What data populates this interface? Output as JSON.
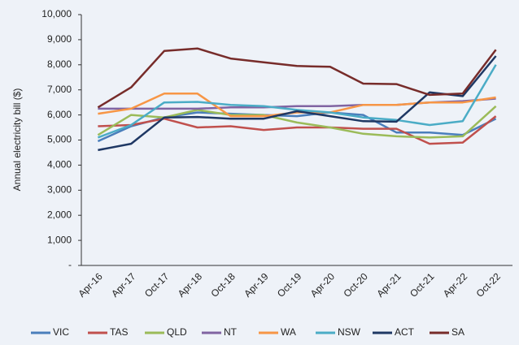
{
  "chart_data": {
    "type": "line",
    "ylabel": "Annual electricity bill ($)",
    "categories": [
      "Apr-16",
      "Apr-17",
      "Oct-17",
      "Apr-18",
      "Oct-18",
      "Apr-19",
      "Oct-19",
      "Apr-20",
      "Oct-20",
      "Apr-21",
      "Oct-21",
      "Apr-22",
      "Oct-22"
    ],
    "series": [
      {
        "name": "VIC",
        "color": "#4a7ebb",
        "values": [
          4950,
          5550,
          5900,
          6100,
          6050,
          6000,
          5950,
          6100,
          6000,
          5300,
          5300,
          5200,
          5850
        ]
      },
      {
        "name": "TAS",
        "color": "#c0504d",
        "values": [
          5550,
          5600,
          5850,
          5500,
          5550,
          5400,
          5500,
          5500,
          5450,
          5450,
          4850,
          4900,
          5950
        ]
      },
      {
        "name": "QLD",
        "color": "#9bbb59",
        "values": [
          5200,
          6000,
          5900,
          6200,
          6000,
          6000,
          5700,
          5500,
          5250,
          5150,
          5100,
          5150,
          6350
        ]
      },
      {
        "name": "NT",
        "color": "#8064a2",
        "values": [
          6250,
          6250,
          6250,
          6250,
          6300,
          6300,
          6350,
          6350,
          6400,
          6400,
          6500,
          6550,
          6650
        ]
      },
      {
        "name": "WA",
        "color": "#f79646",
        "values": [
          6050,
          6250,
          6850,
          6850,
          5950,
          5950,
          6100,
          6100,
          6400,
          6400,
          6500,
          6500,
          6700
        ]
      },
      {
        "name": "NSW",
        "color": "#4bacc6",
        "values": [
          5100,
          5600,
          6500,
          6520,
          6400,
          6350,
          6200,
          6100,
          5900,
          5800,
          5600,
          5750,
          8000
        ]
      },
      {
        "name": "ACT",
        "color": "#1f3864",
        "values": [
          4600,
          4850,
          5900,
          5920,
          5850,
          5850,
          6150,
          5950,
          5750,
          5730,
          6900,
          6750,
          8350
        ]
      },
      {
        "name": "SA",
        "color": "#772c2a",
        "values": [
          6300,
          7100,
          8550,
          8650,
          8250,
          8100,
          7950,
          7920,
          7250,
          7230,
          6800,
          6850,
          8600
        ]
      }
    ],
    "ylim": [
      0,
      10000
    ],
    "yticks": [
      {
        "value": 0,
        "label": "-"
      },
      {
        "value": 1000,
        "label": "1,000"
      },
      {
        "value": 2000,
        "label": "2,000"
      },
      {
        "value": 3000,
        "label": "3,000"
      },
      {
        "value": 4000,
        "label": "4,000"
      },
      {
        "value": 5000,
        "label": "5,000"
      },
      {
        "value": 6000,
        "label": "6,000"
      },
      {
        "value": 7000,
        "label": "7,000"
      },
      {
        "value": 8000,
        "label": "8,000"
      },
      {
        "value": 9000,
        "label": "9,000"
      },
      {
        "value": 10000,
        "label": "10,000"
      }
    ],
    "legend": "bottom"
  }
}
